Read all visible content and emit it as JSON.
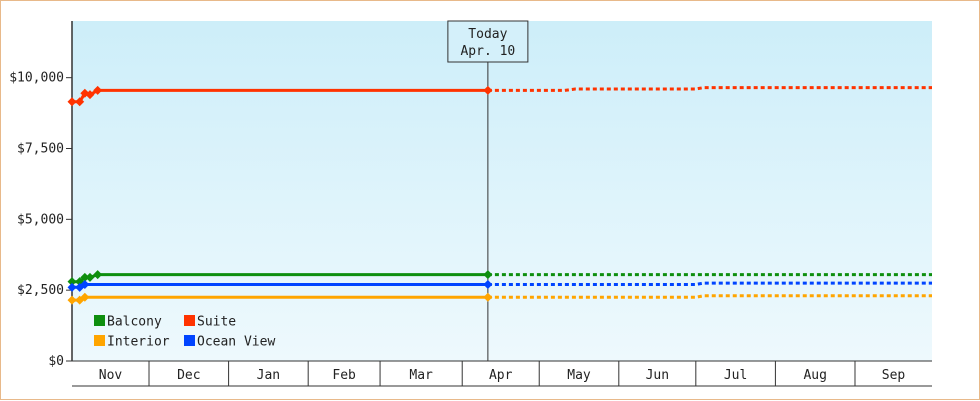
{
  "chart_data": {
    "type": "line",
    "title": "",
    "xlabel": "",
    "ylabel": "",
    "ylim": [
      0,
      12000
    ],
    "xlim": [
      "2023-10-31",
      "2024-09-30"
    ],
    "grid": false,
    "legend_position": "bottom-left",
    "colors": {
      "Balcony": "#0e8f0e",
      "Suite": "#ff3300",
      "Interior": "#ffa500",
      "Ocean View": "#0044ff"
    },
    "today": {
      "line1": "Today",
      "line2": "Apr. 10",
      "date": "2024-04-10"
    },
    "y_ticks": [
      {
        "value": 0,
        "label": "$0"
      },
      {
        "value": 2500,
        "label": "$2,500"
      },
      {
        "value": 5000,
        "label": "$5,000"
      },
      {
        "value": 7500,
        "label": "$7,500"
      },
      {
        "value": 10000,
        "label": "$10,000"
      }
    ],
    "x_months": [
      {
        "label": "Nov",
        "start": "2023-10-31",
        "end": "2023-11-30"
      },
      {
        "label": "Dec",
        "start": "2023-11-30",
        "end": "2023-12-31"
      },
      {
        "label": "Jan",
        "start": "2023-12-31",
        "end": "2024-01-31"
      },
      {
        "label": "Feb",
        "start": "2024-01-31",
        "end": "2024-02-28"
      },
      {
        "label": "Mar",
        "start": "2024-02-28",
        "end": "2024-03-31"
      },
      {
        "label": "Apr",
        "start": "2024-03-31",
        "end": "2024-04-30"
      },
      {
        "label": "May",
        "start": "2024-04-30",
        "end": "2024-05-31"
      },
      {
        "label": "Jun",
        "start": "2024-05-31",
        "end": "2024-06-30"
      },
      {
        "label": "Jul",
        "start": "2024-06-30",
        "end": "2024-07-31"
      },
      {
        "label": "Aug",
        "start": "2024-07-31",
        "end": "2024-08-31"
      },
      {
        "label": "Sep",
        "start": "2024-08-31",
        "end": "2024-09-30"
      }
    ],
    "series": [
      {
        "name": "Suite",
        "points": [
          {
            "x": "2023-10-31",
            "y": 9150
          },
          {
            "x": "2023-11-03",
            "y": 9150
          },
          {
            "x": "2023-11-05",
            "y": 9450
          },
          {
            "x": "2023-11-07",
            "y": 9400
          },
          {
            "x": "2023-11-10",
            "y": 9550
          },
          {
            "x": "2024-04-10",
            "y": 9550
          }
        ],
        "projection": [
          {
            "x": "2024-04-10",
            "y": 9550
          },
          {
            "x": "2024-05-10",
            "y": 9550
          },
          {
            "x": "2024-05-14",
            "y": 9600
          },
          {
            "x": "2024-06-30",
            "y": 9600
          },
          {
            "x": "2024-07-03",
            "y": 9650
          },
          {
            "x": "2024-09-30",
            "y": 9650
          }
        ]
      },
      {
        "name": "Balcony",
        "points": [
          {
            "x": "2023-10-31",
            "y": 2800
          },
          {
            "x": "2023-11-03",
            "y": 2800
          },
          {
            "x": "2023-11-05",
            "y": 2950
          },
          {
            "x": "2023-11-07",
            "y": 2950
          },
          {
            "x": "2023-11-10",
            "y": 3050
          },
          {
            "x": "2024-04-10",
            "y": 3050
          }
        ],
        "projection": [
          {
            "x": "2024-04-10",
            "y": 3050
          },
          {
            "x": "2024-09-30",
            "y": 3050
          }
        ]
      },
      {
        "name": "Ocean View",
        "points": [
          {
            "x": "2023-10-31",
            "y": 2600
          },
          {
            "x": "2023-11-03",
            "y": 2600
          },
          {
            "x": "2023-11-05",
            "y": 2700
          },
          {
            "x": "2024-04-10",
            "y": 2700
          }
        ],
        "projection": [
          {
            "x": "2024-04-10",
            "y": 2700
          },
          {
            "x": "2024-06-30",
            "y": 2700
          },
          {
            "x": "2024-07-03",
            "y": 2750
          },
          {
            "x": "2024-09-30",
            "y": 2750
          }
        ]
      },
      {
        "name": "Interior",
        "points": [
          {
            "x": "2023-10-31",
            "y": 2150
          },
          {
            "x": "2023-11-03",
            "y": 2150
          },
          {
            "x": "2023-11-05",
            "y": 2250
          },
          {
            "x": "2024-04-10",
            "y": 2250
          }
        ],
        "projection": [
          {
            "x": "2024-04-10",
            "y": 2250
          },
          {
            "x": "2024-06-30",
            "y": 2250
          },
          {
            "x": "2024-07-03",
            "y": 2300
          },
          {
            "x": "2024-09-30",
            "y": 2300
          }
        ]
      }
    ],
    "legend": [
      "Balcony",
      "Suite",
      "Interior",
      "Ocean View"
    ]
  }
}
